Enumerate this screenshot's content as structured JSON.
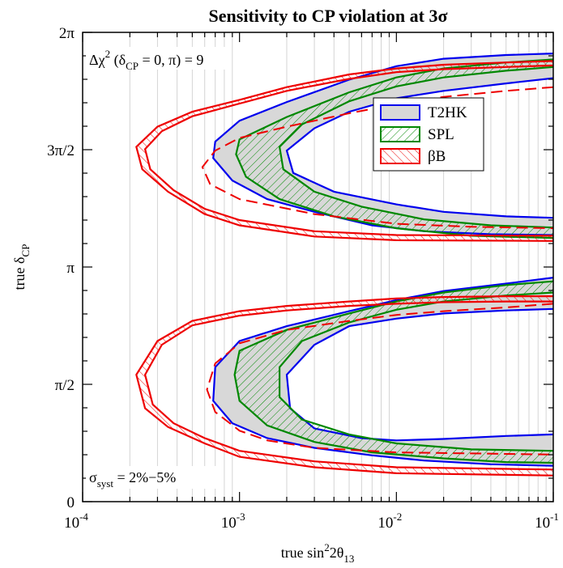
{
  "chart_data": {
    "type": "contour",
    "title": "Sensitivity to CP violation at 3σ",
    "xlabel": "true  sin²2θ₁₃",
    "ylabel": "true  δCP",
    "x_scale": "log",
    "xlim": [
      0.0001,
      0.1
    ],
    "x_ticks": [
      {
        "value": 0.0001,
        "label": "10",
        "exp": "-4"
      },
      {
        "value": 0.001,
        "label": "10",
        "exp": "-3"
      },
      {
        "value": 0.01,
        "label": "10",
        "exp": "-2"
      },
      {
        "value": 0.1,
        "label": "10",
        "exp": "-1"
      }
    ],
    "ylim": [
      0,
      6.2832
    ],
    "y_ticks": [
      {
        "value": 0,
        "label": "0"
      },
      {
        "value": 1.5708,
        "label": "π/2"
      },
      {
        "value": 3.1416,
        "label": "π"
      },
      {
        "value": 4.7124,
        "label": "3π/2"
      },
      {
        "value": 6.2832,
        "label": "2π"
      }
    ],
    "grid": "vertical minor lines",
    "legend_position": "upper-right",
    "annotations": {
      "top_left": "Δχ² (δCP = 0, π) = 9",
      "bottom_left": "σsyst = 2%−5%"
    },
    "series": [
      {
        "name": "T2HK",
        "style": "gray filled band, blue border",
        "color": "#0000ee",
        "fill": "#d8d8d8",
        "upper_lobe": {
          "outer": [
            [
              0.1,
              6.0
            ],
            [
              0.05,
              5.98
            ],
            [
              0.02,
              5.93
            ],
            [
              0.01,
              5.83
            ],
            [
              0.005,
              5.65
            ],
            [
              0.002,
              5.35
            ],
            [
              0.001,
              5.1
            ],
            [
              0.0007,
              4.82
            ],
            [
              0.00068,
              4.6
            ],
            [
              0.0009,
              4.3
            ],
            [
              0.0015,
              4.05
            ],
            [
              0.003,
              3.88
            ],
            [
              0.007,
              3.7
            ],
            [
              0.015,
              3.62
            ],
            [
              0.04,
              3.58
            ],
            [
              0.1,
              3.57
            ]
          ],
          "inner": [
            [
              0.1,
              5.67
            ],
            [
              0.05,
              5.6
            ],
            [
              0.02,
              5.5
            ],
            [
              0.01,
              5.4
            ],
            [
              0.005,
              5.22
            ],
            [
              0.003,
              5.0
            ],
            [
              0.002,
              4.7
            ],
            [
              0.0022,
              4.4
            ],
            [
              0.004,
              4.15
            ],
            [
              0.01,
              3.98
            ],
            [
              0.02,
              3.88
            ],
            [
              0.05,
              3.82
            ],
            [
              0.1,
              3.8
            ]
          ]
        },
        "lower_lobe": {
          "outer": [
            [
              0.1,
              3.0
            ],
            [
              0.05,
              2.92
            ],
            [
              0.02,
              2.82
            ],
            [
              0.01,
              2.7
            ],
            [
              0.005,
              2.55
            ],
            [
              0.002,
              2.35
            ],
            [
              0.001,
              2.15
            ],
            [
              0.0007,
              1.8
            ],
            [
              0.00068,
              1.35
            ],
            [
              0.0009,
              1.05
            ],
            [
              0.0015,
              0.85
            ],
            [
              0.003,
              0.72
            ],
            [
              0.007,
              0.62
            ],
            [
              0.015,
              0.55
            ],
            [
              0.04,
              0.5
            ],
            [
              0.1,
              0.48
            ]
          ],
          "inner": [
            [
              0.1,
              2.58
            ],
            [
              0.05,
              2.56
            ],
            [
              0.02,
              2.52
            ],
            [
              0.01,
              2.45
            ],
            [
              0.005,
              2.35
            ],
            [
              0.003,
              2.1
            ],
            [
              0.002,
              1.7
            ],
            [
              0.0021,
              1.25
            ],
            [
              0.003,
              0.98
            ],
            [
              0.006,
              0.85
            ],
            [
              0.01,
              0.82
            ],
            [
              0.02,
              0.84
            ],
            [
              0.05,
              0.88
            ],
            [
              0.1,
              0.9
            ]
          ]
        }
      },
      {
        "name": "SPL",
        "style": "green hatched band",
        "color": "#008800",
        "upper_lobe": {
          "outer": [
            [
              0.1,
              5.92
            ],
            [
              0.05,
              5.88
            ],
            [
              0.02,
              5.8
            ],
            [
              0.01,
              5.68
            ],
            [
              0.005,
              5.48
            ],
            [
              0.002,
              5.15
            ],
            [
              0.001,
              4.85
            ],
            [
              0.00095,
              4.65
            ],
            [
              0.0011,
              4.35
            ],
            [
              0.0018,
              4.05
            ],
            [
              0.004,
              3.82
            ],
            [
              0.01,
              3.66
            ],
            [
              0.03,
              3.56
            ],
            [
              0.1,
              3.53
            ]
          ],
          "inner": [
            [
              0.1,
              5.82
            ],
            [
              0.05,
              5.77
            ],
            [
              0.02,
              5.68
            ],
            [
              0.01,
              5.56
            ],
            [
              0.005,
              5.36
            ],
            [
              0.0025,
              5.05
            ],
            [
              0.0018,
              4.75
            ],
            [
              0.0019,
              4.45
            ],
            [
              0.003,
              4.15
            ],
            [
              0.006,
              3.95
            ],
            [
              0.015,
              3.78
            ],
            [
              0.04,
              3.7
            ],
            [
              0.1,
              3.67
            ]
          ]
        },
        "lower_lobe": {
          "outer": [
            [
              0.1,
              2.95
            ],
            [
              0.05,
              2.9
            ],
            [
              0.02,
              2.8
            ],
            [
              0.01,
              2.68
            ],
            [
              0.005,
              2.52
            ],
            [
              0.002,
              2.3
            ],
            [
              0.001,
              2.02
            ],
            [
              0.00093,
              1.7
            ],
            [
              0.001,
              1.35
            ],
            [
              0.0015,
              1.02
            ],
            [
              0.003,
              0.8
            ],
            [
              0.007,
              0.66
            ],
            [
              0.02,
              0.58
            ],
            [
              0.05,
              0.53
            ],
            [
              0.1,
              0.52
            ]
          ],
          "inner": [
            [
              0.1,
              2.8
            ],
            [
              0.05,
              2.76
            ],
            [
              0.02,
              2.68
            ],
            [
              0.01,
              2.57
            ],
            [
              0.005,
              2.4
            ],
            [
              0.0025,
              2.15
            ],
            [
              0.0018,
              1.8
            ],
            [
              0.0018,
              1.4
            ],
            [
              0.0025,
              1.1
            ],
            [
              0.005,
              0.9
            ],
            [
              0.01,
              0.78
            ],
            [
              0.03,
              0.7
            ],
            [
              0.1,
              0.68
            ]
          ]
        }
      },
      {
        "name": "βB",
        "style": "red hatched band",
        "color": "#ee0000",
        "upper_lobe": {
          "outer": [
            [
              0.1,
              5.9
            ],
            [
              0.05,
              5.88
            ],
            [
              0.02,
              5.85
            ],
            [
              0.01,
              5.8
            ],
            [
              0.005,
              5.72
            ],
            [
              0.002,
              5.55
            ],
            [
              0.001,
              5.38
            ],
            [
              0.0005,
              5.22
            ],
            [
              0.0003,
              5.02
            ],
            [
              0.00022,
              4.75
            ],
            [
              0.00024,
              4.45
            ],
            [
              0.00035,
              4.15
            ],
            [
              0.0006,
              3.85
            ],
            [
              0.001,
              3.7
            ],
            [
              0.003,
              3.55
            ],
            [
              0.01,
              3.5
            ],
            [
              0.1,
              3.49
            ]
          ],
          "inner": [
            [
              0.1,
              5.84
            ],
            [
              0.05,
              5.82
            ],
            [
              0.02,
              5.79
            ],
            [
              0.01,
              5.75
            ],
            [
              0.005,
              5.66
            ],
            [
              0.002,
              5.5
            ],
            [
              0.001,
              5.33
            ],
            [
              0.0005,
              5.16
            ],
            [
              0.00032,
              4.96
            ],
            [
              0.00025,
              4.72
            ],
            [
              0.00027,
              4.45
            ],
            [
              0.00038,
              4.17
            ],
            [
              0.0006,
              3.92
            ],
            [
              0.001,
              3.77
            ],
            [
              0.003,
              3.62
            ],
            [
              0.01,
              3.57
            ],
            [
              0.1,
              3.56
            ]
          ]
        },
        "lower_lobe": {
          "outer": [
            [
              0.1,
              2.75
            ],
            [
              0.05,
              2.75
            ],
            [
              0.02,
              2.74
            ],
            [
              0.01,
              2.72
            ],
            [
              0.005,
              2.68
            ],
            [
              0.002,
              2.62
            ],
            [
              0.001,
              2.55
            ],
            [
              0.0005,
              2.42
            ],
            [
              0.0003,
              2.15
            ],
            [
              0.00022,
              1.7
            ],
            [
              0.00025,
              1.25
            ],
            [
              0.00035,
              1.0
            ],
            [
              0.0006,
              0.78
            ],
            [
              0.001,
              0.6
            ],
            [
              0.003,
              0.46
            ],
            [
              0.01,
              0.38
            ],
            [
              0.1,
              0.35
            ]
          ],
          "inner": [
            [
              0.1,
              2.68
            ],
            [
              0.05,
              2.68
            ],
            [
              0.02,
              2.67
            ],
            [
              0.01,
              2.65
            ],
            [
              0.005,
              2.62
            ],
            [
              0.002,
              2.56
            ],
            [
              0.001,
              2.49
            ],
            [
              0.0005,
              2.36
            ],
            [
              0.00032,
              2.1
            ],
            [
              0.00025,
              1.7
            ],
            [
              0.00028,
              1.3
            ],
            [
              0.00038,
              1.05
            ],
            [
              0.0006,
              0.85
            ],
            [
              0.001,
              0.68
            ],
            [
              0.003,
              0.54
            ],
            [
              0.01,
              0.46
            ],
            [
              0.1,
              0.43
            ]
          ]
        },
        "dashed_curves": {
          "upper": [
            [
              0.1,
              5.55
            ],
            [
              0.05,
              5.5
            ],
            [
              0.02,
              5.42
            ],
            [
              0.01,
              5.32
            ],
            [
              0.005,
              5.2
            ],
            [
              0.002,
              5.02
            ],
            [
              0.001,
              4.87
            ],
            [
              0.0007,
              4.7
            ],
            [
              0.00058,
              4.48
            ],
            [
              0.00065,
              4.25
            ],
            [
              0.001,
              4.05
            ],
            [
              0.003,
              3.85
            ],
            [
              0.01,
              3.72
            ],
            [
              0.03,
              3.68
            ],
            [
              0.1,
              3.66
            ]
          ],
          "lower": [
            [
              0.1,
              2.65
            ],
            [
              0.05,
              2.6
            ],
            [
              0.02,
              2.55
            ],
            [
              0.01,
              2.5
            ],
            [
              0.005,
              2.42
            ],
            [
              0.002,
              2.3
            ],
            [
              0.001,
              2.12
            ],
            [
              0.0007,
              1.85
            ],
            [
              0.00062,
              1.5
            ],
            [
              0.0007,
              1.2
            ],
            [
              0.001,
              0.95
            ],
            [
              0.0015,
              0.82
            ],
            [
              0.003,
              0.72
            ],
            [
              0.01,
              0.66
            ],
            [
              0.1,
              0.63
            ]
          ]
        }
      }
    ]
  }
}
